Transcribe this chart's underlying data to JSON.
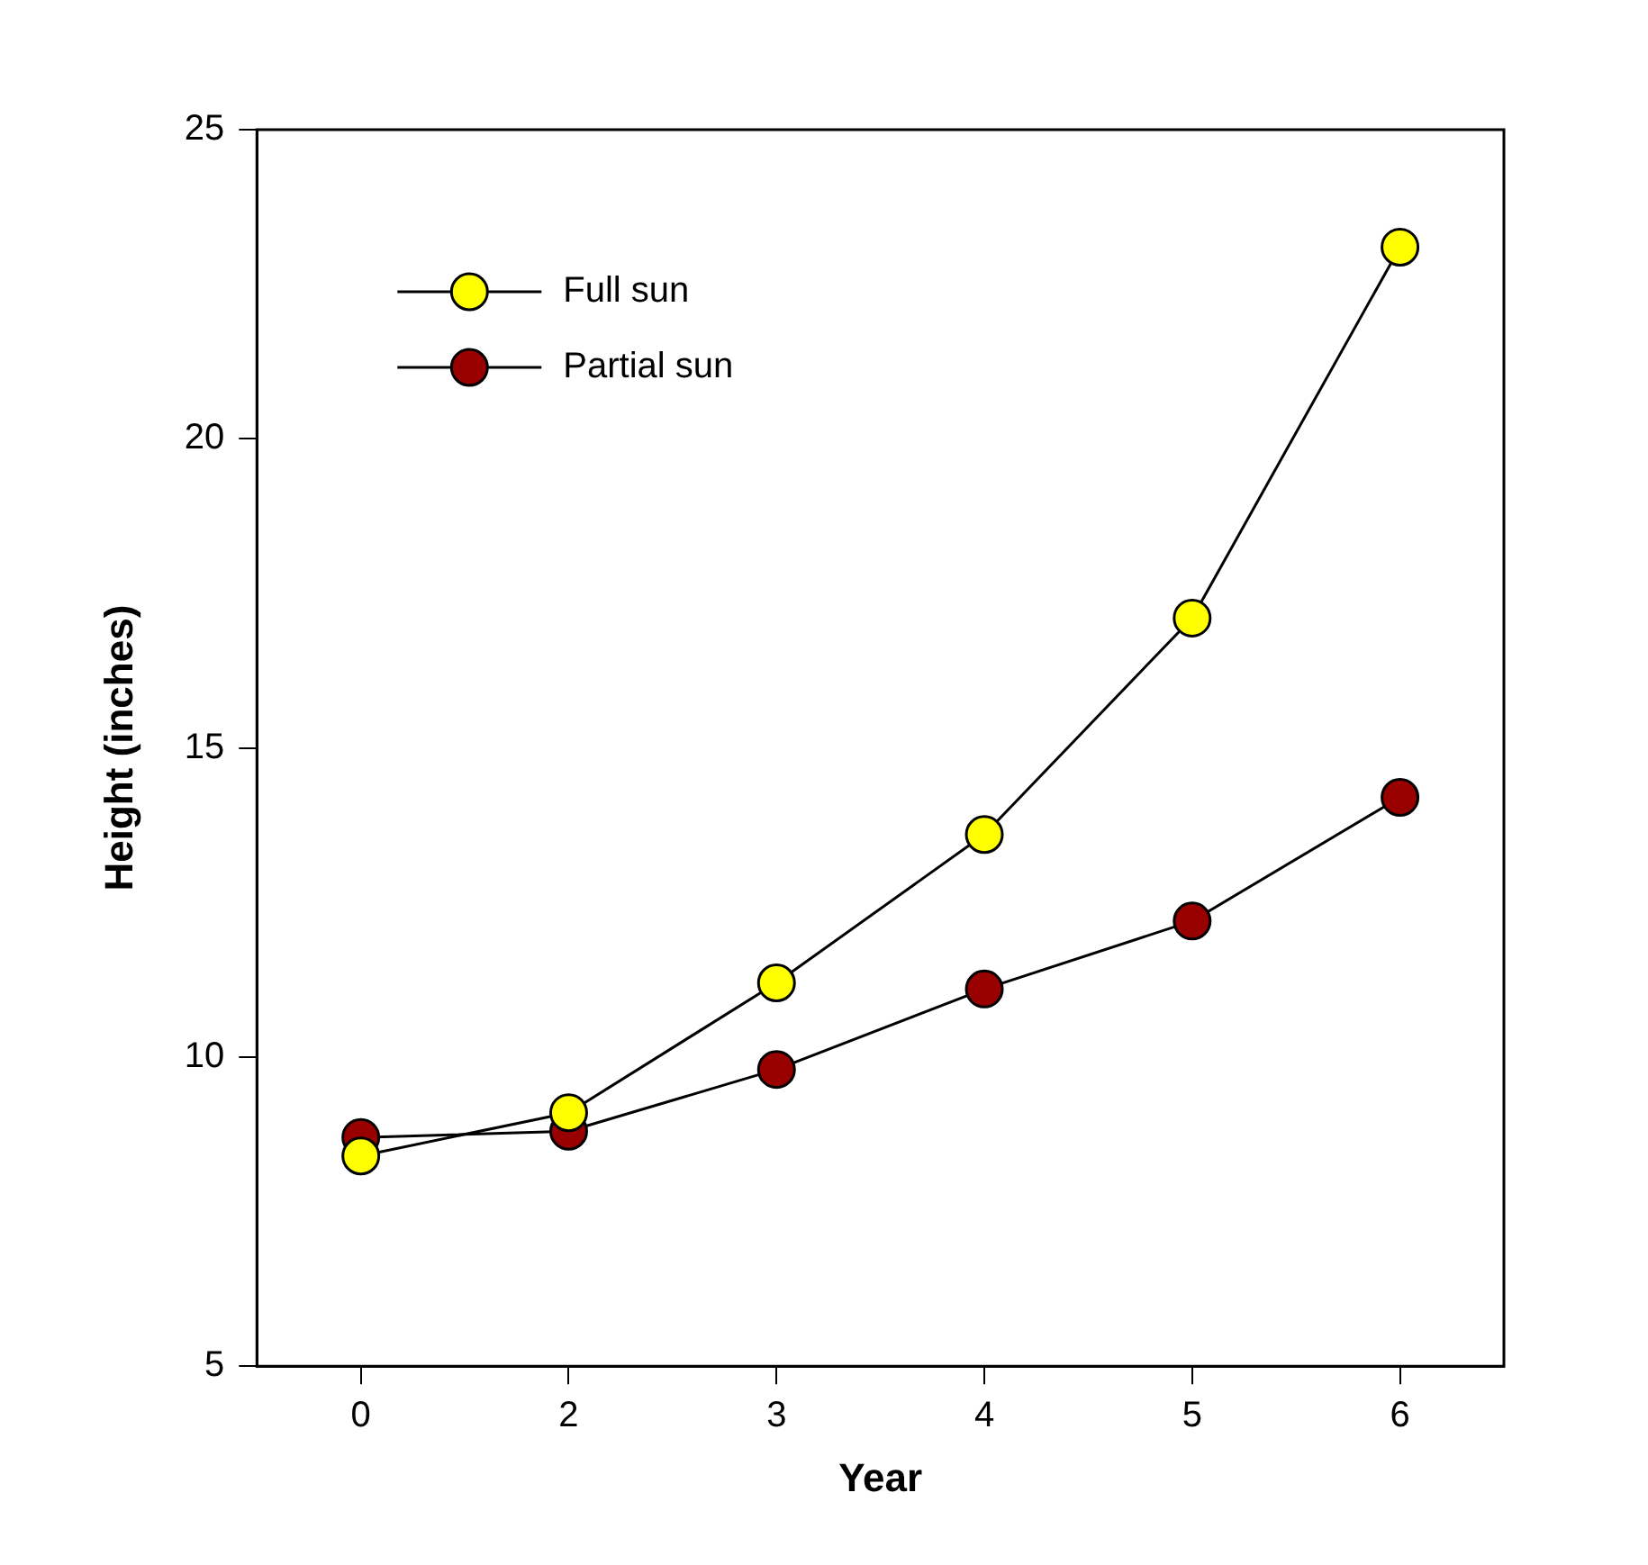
{
  "chart_data": {
    "type": "line",
    "xlabel": "Year",
    "ylabel": "Height (inches)",
    "categories": [
      "0",
      "2",
      "3",
      "4",
      "5",
      "6"
    ],
    "series": [
      {
        "name": "Full sun",
        "color": "#ffff00",
        "values": [
          8.4,
          9.1,
          11.2,
          13.6,
          17.1,
          23.1
        ]
      },
      {
        "name": "Partial sun",
        "color": "#990000",
        "values": [
          8.7,
          8.8,
          9.8,
          11.1,
          12.2,
          14.2
        ]
      }
    ],
    "ylim": [
      5,
      25
    ],
    "yticks": [
      5,
      10,
      15,
      20,
      25
    ],
    "grid": false,
    "legend": "top left",
    "marker": "circle",
    "line_style": "solid"
  }
}
